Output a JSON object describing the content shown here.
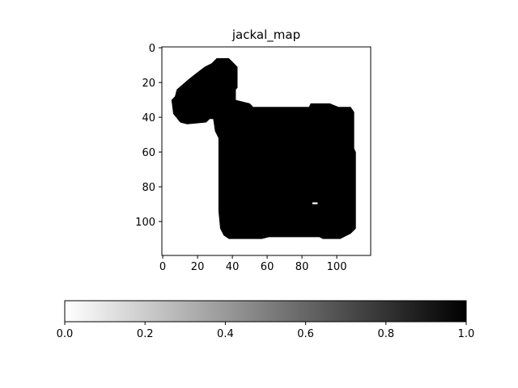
{
  "chart_data": {
    "type": "heatmap",
    "title": "jackal_map",
    "colormap": "gray_r",
    "value_range": [
      0,
      1
    ],
    "grid": false,
    "x_axis": {
      "range": [
        -0.5,
        119.5
      ],
      "ticks": [
        0,
        20,
        40,
        60,
        80,
        100
      ],
      "tick_labels": [
        "0",
        "20",
        "40",
        "60",
        "80",
        "100"
      ]
    },
    "y_axis": {
      "range": [
        -0.5,
        119.5
      ],
      "inverted": true,
      "ticks": [
        0,
        20,
        40,
        60,
        80,
        100
      ],
      "tick_labels": [
        "0",
        "20",
        "40",
        "60",
        "80",
        "100"
      ]
    },
    "colorbar": {
      "orientation": "horizontal",
      "placement": "bottom",
      "range": [
        0,
        1
      ],
      "ticks": [
        0.0,
        0.2,
        0.4,
        0.6,
        0.8,
        1.0
      ],
      "tick_labels": [
        "0.0",
        "0.2",
        "0.4",
        "0.6",
        "0.8",
        "1.0"
      ]
    },
    "occupied_value": 1,
    "free_value": 0,
    "occupied_region_outline": [
      [
        31,
        6
      ],
      [
        38,
        6
      ],
      [
        40,
        8
      ],
      [
        43,
        11
      ],
      [
        43,
        23
      ],
      [
        42,
        24
      ],
      [
        42,
        30
      ],
      [
        50,
        32
      ],
      [
        52,
        34
      ],
      [
        84,
        34
      ],
      [
        85,
        32
      ],
      [
        96,
        32
      ],
      [
        101,
        34
      ],
      [
        108,
        34
      ],
      [
        110,
        37
      ],
      [
        110,
        58
      ],
      [
        111,
        60
      ],
      [
        111,
        104
      ],
      [
        108,
        107
      ],
      [
        106,
        108
      ],
      [
        102,
        110
      ],
      [
        92,
        110
      ],
      [
        90,
        109
      ],
      [
        61,
        109
      ],
      [
        57,
        110
      ],
      [
        38,
        110
      ],
      [
        35,
        108
      ],
      [
        33,
        104
      ],
      [
        32,
        94
      ],
      [
        32,
        52
      ],
      [
        30,
        48
      ],
      [
        29,
        41
      ],
      [
        27,
        41
      ],
      [
        25,
        43
      ],
      [
        14,
        44
      ],
      [
        10,
        43
      ],
      [
        6,
        38
      ],
      [
        5,
        30
      ],
      [
        7,
        28
      ],
      [
        8,
        24
      ],
      [
        15,
        18
      ],
      [
        20,
        14
      ],
      [
        24,
        11
      ],
      [
        28,
        9
      ]
    ],
    "free_holes": [
      {
        "x": [
          86,
          89
        ],
        "y": [
          89,
          90
        ]
      }
    ]
  }
}
